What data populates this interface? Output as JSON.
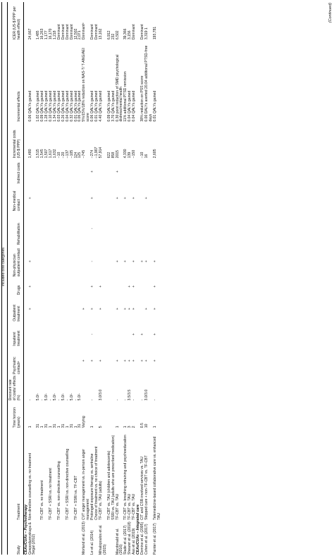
{
  "table": {
    "category_header": "Included cost categories",
    "footer": "(Continued)",
    "columns": [
      "Study",
      "Treatment",
      "Time horizon (years)",
      "Discount rate of costs/ effects (%)",
      "Psychiatric contactᵃ",
      "Inpatient treatment",
      "Outpatient treatment",
      "Drugs",
      "Non-physician outpatient contact",
      "Rehabilitation",
      "Non-medical contact",
      "Indirect costs",
      "Incremental costs (US-$ PPP)",
      "Incremental effects",
      "ICER (US-$ PPP per health effect)"
    ],
    "rows": [
      {
        "section": "CEAs/CUAs – Psychotherapy"
      },
      {
        "cells": [
          "Gospodarevskaya & Segal (2012)",
          "Non-directive counselling vs. no treatment",
          "1",
          "-",
          "",
          "",
          "+",
          "+",
          "+",
          "",
          "+",
          "",
          "1,480",
          "0.06 QALYs gained",
          "24,667"
        ]
      },
      {
        "cells": [
          "",
          "",
          "31",
          "5.0/-",
          "",
          "",
          "",
          "",
          "",
          "",
          "",
          "",
          "1,515",
          "1.02 QALYs gained",
          "1,485"
        ]
      },
      {
        "cells": [
          "",
          "TF-CBT vs. no treatment",
          "1",
          "-",
          "",
          "",
          "",
          "",
          "",
          "",
          "",
          "",
          "1,545",
          "0.09 QALYs gained",
          "16,263"
        ]
      },
      {
        "cells": [
          "",
          "",
          "31",
          "5.0/-",
          "",
          "",
          "",
          "",
          "",
          "",
          "",
          "",
          "1,507",
          "1.28 QALYs gained",
          "1,177"
        ]
      },
      {
        "cells": [
          "",
          "TF-CBT + SSRI vs. no treatment",
          "1",
          "-",
          "",
          "",
          "",
          "",
          "",
          "",
          "",
          "",
          "1,617",
          "0.10 QALYs gained",
          "16,170"
        ]
      },
      {
        "cells": [
          "",
          "",
          "31",
          "5.0/-",
          "",
          "",
          "",
          "",
          "",
          "",
          "",
          "",
          "1,632",
          "1.34 QALYs gained",
          "1,218"
        ]
      },
      {
        "cells": [
          "",
          "TF-CBT vs. non-directive counselling",
          "1",
          "-",
          "",
          "",
          "",
          "",
          "",
          "",
          "",
          "",
          "−10",
          "0.03 QALYs gained",
          "Dominant"
        ]
      },
      {
        "cells": [
          "",
          "",
          "31",
          "5.0/-",
          "",
          "",
          "",
          "",
          "",
          "",
          "",
          "",
          "−20",
          "0.26 QALYs gained",
          "Dominant"
        ]
      },
      {
        "cells": [
          "",
          "TF-CBT + SSRI vs. non-directive counselling",
          "1",
          "-",
          "",
          "",
          "",
          "",
          "",
          "",
          "",
          "",
          "−137",
          "0.04 QALYs gained",
          "Dominant"
        ]
      },
      {
        "cells": [
          "",
          "",
          "31",
          "5.0/-",
          "",
          "",
          "",
          "",
          "",
          "",
          "",
          "",
          "−105",
          "0.32 QALYs gained",
          "Dominant"
        ]
      },
      {
        "cells": [
          "",
          "TF-CBT + SSRI vs. TF-CBT",
          "1",
          "-",
          "",
          "",
          "",
          "",
          "",
          "",
          "",
          "",
          "124",
          "0.01 QALYs gained",
          "12,502"
        ]
      },
      {
        "cells": [
          "",
          "",
          "31",
          "5.0/-",
          "",
          "",
          "",
          "",
          "",
          "",
          "",
          "",
          "125",
          "0.06 QALYs gained",
          "2,071"
        ]
      },
      {
        "cells": [
          "Morland et al. (2013)",
          "CVT anger management vs. in-person anger management",
          "Varying",
          "",
          "+",
          "",
          "+",
          "",
          "",
          "",
          "",
          "",
          "−745",
          "5%/15%/18% reduction on NAS-T/ T-ANG/AEI score",
          "Dominantᵇ"
        ]
      },
      {
        "cells": [
          "Le et al. (2014)",
          "Prolonged exposure therapy vs. sertraline",
          "1",
          "-",
          "+",
          "-",
          "+",
          "+",
          "-",
          "-",
          "+",
          "+",
          "−274",
          "0.06 QALYs gained",
          "Dominant"
        ]
      },
      {
        "cells": [
          "",
          "Choice of treatment vs. no choice of treatment",
          "",
          "",
          "",
          "",
          "",
          "",
          "",
          "",
          "",
          "",
          "−1,907",
          "0.01 QALYs gained",
          "Dominant"
        ]
      },
      {
        "cells": [
          "Mihalopoulos et al. (2015)",
          "TF-CBT vs. TAU (adults)",
          "5",
          "3.0/3.0",
          "+",
          "",
          "+",
          "+",
          "",
          "",
          "",
          "",
          "57,914",
          "4.40 QALYs gained",
          "13,162"
        ]
      },
      {
        "cells": [
          "",
          "TF-CBT vs. TAU (children and adolescents)",
          "",
          "",
          "",
          "",
          "",
          "",
          "",
          "",
          "",
          "",
          "622",
          "0.09 QALYs gained",
          "6,912"
        ]
      },
      {
        "cells": [
          "",
          "SSRI vs. TAU (adults who are prescribed medication)",
          "",
          "",
          "",
          "",
          "",
          "",
          "",
          "",
          "",
          "",
          "858",
          "3.70 QALYs gained",
          "232"
        ]
      },
      {
        "cells": [
          "Macdonald et al. (2016)",
          "TF-CBT vs. TAU",
          "1",
          "-",
          "+",
          "",
          "+",
          "",
          "+",
          "",
          "+",
          "+",
          "2015",
          "0.30 point reduction of SMD psychological distress/mental health",
          "6,502"
        ]
      },
      {
        "cells": [
          "Slade et al. (2017)",
          "TF-CBT vs. breathing retraining and psychoeducation",
          "1",
          "-",
          "+",
          "",
          "+",
          "",
          "+",
          "",
          "+",
          "",
          "4,330",
          "11% additional PTSD remission",
          "39,366"
        ]
      },
      {
        "cells": [
          "Shearer et al. (2018)",
          "TF-CBT vs. TAU",
          "3",
          "3.5/3.5",
          "+",
          "",
          "+",
          "+",
          "",
          "",
          "",
          "",
          "139",
          "0.04 QALYs gained",
          "3,156"
        ]
      },
      {
        "cells": [
          "Aas et al. (2019)",
          "TF-CBT vs. TAU",
          "2",
          "-",
          "+",
          "+",
          "+",
          "+",
          "+",
          "",
          "+",
          "",
          "−150",
          "0.04 QALYs gained",
          "Dominant"
        ]
      },
      {
        "section": "CEAs/CUAs – Integrated care"
      },
      {
        "cells": [
          "Domino et al. (2005)",
          "CIT and CSR-involved services vs. TAU",
          "0.5",
          "-",
          "+",
          "+",
          "",
          "",
          "+",
          "",
          "",
          "",
          "−10",
          "38% reduction on PSS score",
          "Dominant"
        ]
      },
      {
        "cells": [
          "Cohen et al. (2017)",
          "Stepped care + non-TF-CBT vs. TF-CBT",
          "10",
          "3.0/3.0",
          "+",
          "",
          "+",
          "",
          "+",
          "",
          "+",
          "",
          "16",
          "0.00 DALYs averted 20.04 additional PTSD-free days",
          "3,319 1"
        ]
      },
      {
        "cells": [
          "Painter et al. (2017)",
          "Telemedicine-based collaborative care vs. enhanced TAU",
          "1",
          "-",
          "+",
          "+",
          "+",
          "+",
          "+",
          "",
          "",
          "",
          "2,605",
          "0.01 QALYs gained",
          "193,781"
        ]
      }
    ]
  }
}
